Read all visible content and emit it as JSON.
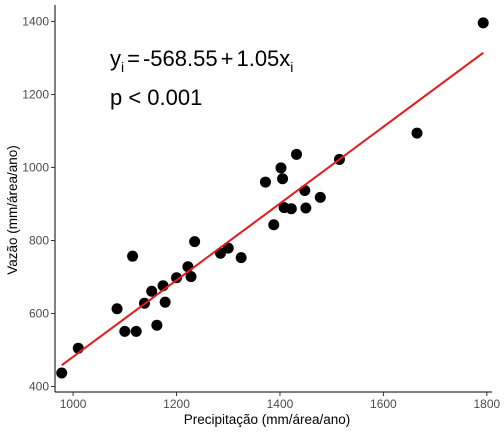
{
  "chart_data": {
    "type": "scatter",
    "title": "",
    "xlabel": "Precipitação (mm/área/ano)",
    "ylabel": "Vazão (mm/área/ano)",
    "xlim": [
      965,
      1810
    ],
    "ylim": [
      385,
      1445
    ],
    "x_ticks": [
      1000,
      1200,
      1400,
      1600,
      1800
    ],
    "y_ticks": [
      400,
      600,
      800,
      1000,
      1200,
      1400
    ],
    "grid": false,
    "legend": "none",
    "point_color": "#000000",
    "line_color": "#e41a1c",
    "points": [
      {
        "x": 978,
        "y": 437
      },
      {
        "x": 1010,
        "y": 505
      },
      {
        "x": 1085,
        "y": 613
      },
      {
        "x": 1100,
        "y": 551
      },
      {
        "x": 1115,
        "y": 757
      },
      {
        "x": 1122,
        "y": 551
      },
      {
        "x": 1138,
        "y": 628
      },
      {
        "x": 1152,
        "y": 661
      },
      {
        "x": 1162,
        "y": 568
      },
      {
        "x": 1174,
        "y": 676
      },
      {
        "x": 1178,
        "y": 631
      },
      {
        "x": 1200,
        "y": 698
      },
      {
        "x": 1222,
        "y": 728
      },
      {
        "x": 1228,
        "y": 701
      },
      {
        "x": 1235,
        "y": 797
      },
      {
        "x": 1285,
        "y": 765
      },
      {
        "x": 1300,
        "y": 779
      },
      {
        "x": 1325,
        "y": 753
      },
      {
        "x": 1372,
        "y": 960
      },
      {
        "x": 1388,
        "y": 843
      },
      {
        "x": 1402,
        "y": 999
      },
      {
        "x": 1405,
        "y": 969
      },
      {
        "x": 1408,
        "y": 890
      },
      {
        "x": 1422,
        "y": 887
      },
      {
        "x": 1432,
        "y": 1036
      },
      {
        "x": 1448,
        "y": 937
      },
      {
        "x": 1450,
        "y": 889
      },
      {
        "x": 1478,
        "y": 918
      },
      {
        "x": 1515,
        "y": 1022
      },
      {
        "x": 1665,
        "y": 1094
      },
      {
        "x": 1793,
        "y": 1396
      }
    ],
    "regression": {
      "intercept": -568.55,
      "slope": 1.05,
      "x_range": [
        978,
        1793
      ]
    },
    "annotations": {
      "equation": {
        "y_symbol": "y",
        "y_sub": "i",
        "equals": "=",
        "intercept_text": "-568.55",
        "plus": "+",
        "slope_text": "1.05x",
        "x_sub": "i"
      },
      "p_value": "p < 0.001"
    }
  }
}
